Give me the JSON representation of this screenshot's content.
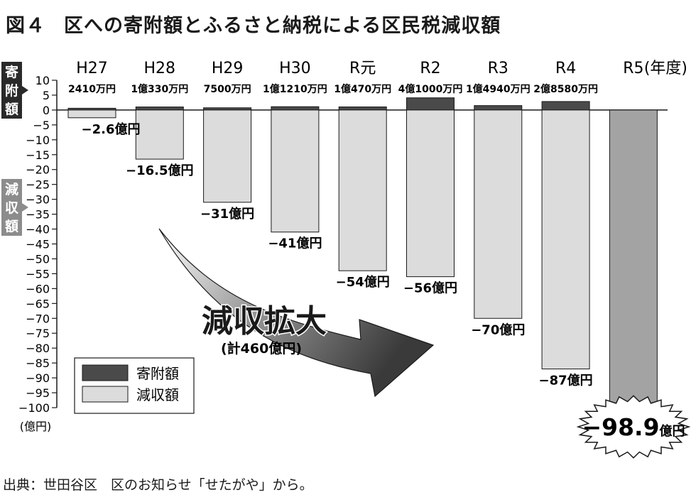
{
  "title": {
    "figure_no": "図４",
    "text": "区への寄附額とふるさと納税による区民税減収額"
  },
  "source": "出典：世田谷区　区のお知らせ「せたがや」から。",
  "chart_data": {
    "type": "bar",
    "categories": [
      "H27",
      "H28",
      "H29",
      "H30",
      "R元",
      "R2",
      "R3",
      "R4",
      "R5"
    ],
    "x_unit": "(年度)",
    "y_unit": "(億円)",
    "ylim": [
      -100,
      10
    ],
    "y_ticks": [
      10,
      5,
      0,
      -5,
      -10,
      -15,
      -20,
      -25,
      -30,
      -35,
      -40,
      -45,
      -50,
      -55,
      -60,
      -65,
      -70,
      -75,
      -80,
      -85,
      -90,
      -95,
      -100
    ],
    "grid": false,
    "side_labels": {
      "donation": "寄附額",
      "reduction": "減収額"
    },
    "series": [
      {
        "name": "寄附額",
        "color": "#4a4a4a",
        "values": [
          0.241,
          1.033,
          0.75,
          1.121,
          1.047,
          4.1,
          1.494,
          2.858,
          null
        ],
        "labels": [
          "2410万円",
          "1億330万円",
          "7500万円",
          "1億1210万円",
          "1億470万円",
          "4億1000万円",
          "1億4940万円",
          "2億8580万円",
          ""
        ]
      },
      {
        "name": "減収額",
        "color": "#dcdcdc",
        "highlight_color": "#a3a3a3",
        "values": [
          -2.6,
          -16.5,
          -31,
          -41,
          -54,
          -56,
          -70,
          -87,
          -98.9
        ],
        "labels": [
          "−2.6億円",
          "−16.5億円",
          "−31億円",
          "−41億円",
          "−54億円",
          "−56億円",
          "−70億円",
          "−87億円",
          ""
        ]
      }
    ],
    "highlight": {
      "value": "−98.9",
      "unit": "億円"
    },
    "annotation": {
      "text": "減収拡大",
      "sub": "(計460億円)"
    },
    "legend": {
      "placement": "bottom-left",
      "items": [
        {
          "label": "寄附額",
          "color": "#4a4a4a"
        },
        {
          "label": "減収額",
          "color": "#dcdcdc"
        }
      ]
    }
  }
}
